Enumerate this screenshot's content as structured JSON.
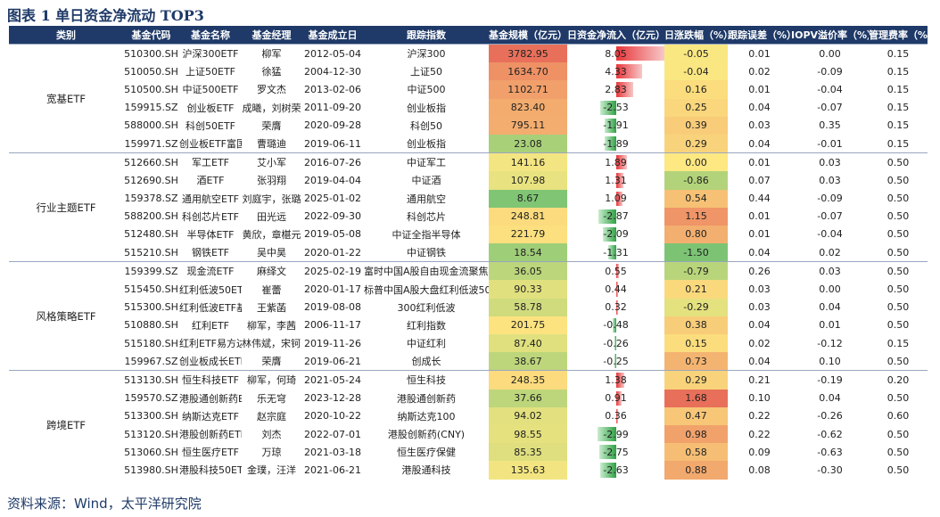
{
  "title": "图表 1  单日资金净流动 TOP3",
  "source": "资料来源：Wind，太平洋研究院",
  "headers": [
    "类别",
    "基金代码",
    "基金名称",
    "基金经理",
    "基金成立日",
    "跟踪指数",
    "基金规模（亿元）",
    "日资金净流入（亿元）",
    "日涨跌幅（%）",
    "跟踪误差（%）",
    "IOPV溢价率（%）",
    "管理费率（%）"
  ],
  "groups": [
    {
      "category": "宽基ETF",
      "rows": [
        {
          "code": "510300.SH",
          "name": "沪深300ETF",
          "manager": "柳军",
          "date": "2012-05-04",
          "index": "沪深300",
          "scale": "3782.95",
          "flow": "8.05",
          "chg": "-0.05",
          "te": "0.01",
          "iopv": "0.00",
          "fee": "0.15"
        },
        {
          "code": "510050.SH",
          "name": "上证50ETF",
          "manager": "徐猛",
          "date": "2004-12-30",
          "index": "上证50",
          "scale": "1634.70",
          "flow": "4.33",
          "chg": "-0.04",
          "te": "0.02",
          "iopv": "-0.09",
          "fee": "0.15"
        },
        {
          "code": "510500.SH",
          "name": "中证500ETF",
          "manager": "罗文杰",
          "date": "2013-02-06",
          "index": "中证500",
          "scale": "1102.71",
          "flow": "2.83",
          "chg": "0.16",
          "te": "0.01",
          "iopv": "-0.04",
          "fee": "0.15"
        },
        {
          "code": "159915.SZ",
          "name": "创业板ETF",
          "manager": "成曦，刘树荣",
          "date": "2011-09-20",
          "index": "创业板指",
          "scale": "823.40",
          "flow": "-2.53",
          "chg": "0.25",
          "te": "0.04",
          "iopv": "-0.07",
          "fee": "0.15"
        },
        {
          "code": "588000.SH",
          "name": "科创50ETF",
          "manager": "荣膺",
          "date": "2020-09-28",
          "index": "科创50",
          "scale": "795.11",
          "flow": "-1.91",
          "chg": "0.39",
          "te": "0.03",
          "iopv": "0.35",
          "fee": "0.15"
        },
        {
          "code": "159971.SZ",
          "name": "创业板ETF富国",
          "manager": "曹璐迪",
          "date": "2019-06-11",
          "index": "创业板指",
          "scale": "23.08",
          "flow": "-1.89",
          "chg": "0.29",
          "te": "0.04",
          "iopv": "-0.01",
          "fee": "0.15"
        }
      ]
    },
    {
      "category": "行业主题ETF",
      "rows": [
        {
          "code": "512660.SH",
          "name": "军工ETF",
          "manager": "艾小军",
          "date": "2016-07-26",
          "index": "中证军工",
          "scale": "141.16",
          "flow": "1.89",
          "chg": "0.00",
          "te": "0.01",
          "iopv": "0.03",
          "fee": "0.50"
        },
        {
          "code": "512690.SH",
          "name": "酒ETF",
          "manager": "张羽翔",
          "date": "2019-04-04",
          "index": "中证酒",
          "scale": "107.98",
          "flow": "1.31",
          "chg": "-0.86",
          "te": "0.07",
          "iopv": "0.03",
          "fee": "0.50"
        },
        {
          "code": "159378.SZ",
          "name": "通用航空ETF",
          "manager": "刘庭宇，张璐",
          "date": "2025-01-02",
          "index": "通用航空",
          "scale": "8.67",
          "flow": "1.09",
          "chg": "0.54",
          "te": "0.44",
          "iopv": "-0.09",
          "fee": "0.50"
        },
        {
          "code": "588200.SH",
          "name": "科创芯片ETF",
          "manager": "田光远",
          "date": "2022-09-30",
          "index": "科创芯片",
          "scale": "248.81",
          "flow": "-2.87",
          "chg": "1.15",
          "te": "0.01",
          "iopv": "-0.07",
          "fee": "0.50"
        },
        {
          "code": "512480.SH",
          "name": "半导体ETF",
          "manager": "黄欣，章椹元",
          "date": "2019-05-08",
          "index": "中证全指半导体",
          "scale": "221.79",
          "flow": "-2.09",
          "chg": "0.80",
          "te": "0.01",
          "iopv": "-0.04",
          "fee": "0.50"
        },
        {
          "code": "515210.SH",
          "name": "钢铁ETF",
          "manager": "吴中昊",
          "date": "2020-01-22",
          "index": "中证钢铁",
          "scale": "18.54",
          "flow": "-1.31",
          "chg": "-1.50",
          "te": "0.04",
          "iopv": "0.02",
          "fee": "0.50"
        }
      ]
    },
    {
      "category": "风格策略ETF",
      "rows": [
        {
          "code": "159399.SZ",
          "name": "现金流ETF",
          "manager": "麻绎文",
          "date": "2025-02-19",
          "index": "富时中国A股自由现金流聚焦指数",
          "scale": "36.05",
          "flow": "0.55",
          "chg": "-0.79",
          "te": "0.26",
          "iopv": "0.03",
          "fee": "0.50"
        },
        {
          "code": "515450.SH",
          "name": "红利低波50ETF",
          "manager": "崔蕾",
          "date": "2020-01-17",
          "index": "标普中国A股大盘红利低波50",
          "scale": "90.33",
          "flow": "0.44",
          "chg": "0.21",
          "te": "0.03",
          "iopv": "0.00",
          "fee": "0.50"
        },
        {
          "code": "515300.SH",
          "name": "红利低波ETF基金",
          "manager": "王紫菡",
          "date": "2019-08-08",
          "index": "300红利低波",
          "scale": "58.78",
          "flow": "0.32",
          "chg": "-0.29",
          "te": "0.03",
          "iopv": "0.04",
          "fee": "0.50"
        },
        {
          "code": "510880.SH",
          "name": "红利ETF",
          "manager": "柳军，李茜",
          "date": "2006-11-17",
          "index": "红利指数",
          "scale": "201.75",
          "flow": "-0.48",
          "chg": "0.38",
          "te": "0.04",
          "iopv": "0.01",
          "fee": "0.50"
        },
        {
          "code": "515180.SH",
          "name": "红利ETF易方达",
          "manager": "林伟斌，宋钶贤",
          "date": "2019-11-26",
          "index": "中证红利",
          "scale": "87.40",
          "flow": "-0.26",
          "chg": "0.15",
          "te": "0.02",
          "iopv": "-0.12",
          "fee": "0.15"
        },
        {
          "code": "159967.SZ",
          "name": "创业板成长ETF",
          "manager": "荣膺",
          "date": "2019-06-21",
          "index": "创成长",
          "scale": "38.67",
          "flow": "-0.25",
          "chg": "0.73",
          "te": "0.04",
          "iopv": "0.10",
          "fee": "0.50"
        }
      ]
    },
    {
      "category": "跨境ETF",
      "rows": [
        {
          "code": "513130.SH",
          "name": "恒生科技ETF",
          "manager": "柳军，何琦",
          "date": "2021-05-24",
          "index": "恒生科技",
          "scale": "248.35",
          "flow": "1.38",
          "chg": "0.29",
          "te": "0.21",
          "iopv": "-0.19",
          "fee": "0.20"
        },
        {
          "code": "159570.SZ",
          "name": "港股通创新药ETF",
          "manager": "乐无穹",
          "date": "2023-12-28",
          "index": "港股通创新药",
          "scale": "37.66",
          "flow": "0.91",
          "chg": "1.68",
          "te": "0.10",
          "iopv": "0.04",
          "fee": "0.50"
        },
        {
          "code": "513300.SH",
          "name": "纳斯达克ETF",
          "manager": "赵宗庭",
          "date": "2020-10-22",
          "index": "纳斯达克100",
          "scale": "94.02",
          "flow": "0.36",
          "chg": "0.47",
          "te": "0.22",
          "iopv": "-0.26",
          "fee": "0.60"
        },
        {
          "code": "513120.SH",
          "name": "港股创新药ETF",
          "manager": "刘杰",
          "date": "2022-07-01",
          "index": "港股创新药(CNY)",
          "scale": "98.55",
          "flow": "-2.99",
          "chg": "0.98",
          "te": "0.22",
          "iopv": "-0.62",
          "fee": "0.50"
        },
        {
          "code": "513060.SH",
          "name": "恒生医疗ETF",
          "manager": "万琼",
          "date": "2021-03-18",
          "index": "恒生医疗保健",
          "scale": "85.35",
          "flow": "-2.75",
          "chg": "0.58",
          "te": "0.09",
          "iopv": "-0.63",
          "fee": "0.50"
        },
        {
          "code": "513980.SH",
          "name": "港股科技50ETF",
          "manager": "金璞，汪洋",
          "date": "2021-06-21",
          "index": "港股通科技",
          "scale": "135.63",
          "flow": "-2.63",
          "chg": "0.88",
          "te": "0.08",
          "iopv": "-0.30",
          "fee": "0.50"
        }
      ]
    }
  ]
}
